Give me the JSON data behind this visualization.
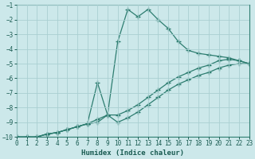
{
  "bg_color": "#cce8ea",
  "grid_color": "#aacfd2",
  "line_color": "#2d7d70",
  "xlim": [
    0,
    23
  ],
  "ylim": [
    -10,
    -1
  ],
  "xticks": [
    0,
    1,
    2,
    3,
    4,
    5,
    6,
    7,
    8,
    9,
    10,
    11,
    12,
    13,
    14,
    15,
    16,
    17,
    18,
    19,
    20,
    21,
    22,
    23
  ],
  "yticks": [
    -10,
    -9,
    -8,
    -7,
    -6,
    -5,
    -4,
    -3,
    -2,
    -1
  ],
  "xlabel": "Humidex (Indice chaleur)",
  "lines": [
    {
      "x": [
        0,
        1,
        2,
        3,
        4,
        5,
        6,
        7,
        8,
        9,
        10,
        11,
        12,
        13,
        14,
        15,
        16,
        17,
        18,
        19,
        20,
        21,
        22,
        23
      ],
      "y": [
        -10,
        -10,
        -10,
        -9.8,
        -9.7,
        -9.5,
        -9.3,
        -9.1,
        -8.8,
        -8.5,
        -3.5,
        -1.3,
        -1.8,
        -1.3,
        -2.0,
        -2.6,
        -3.5,
        -4.1,
        -4.3,
        -4.4,
        -4.5,
        -4.6,
        -4.8,
        -5.0
      ]
    },
    {
      "x": [
        0,
        1,
        2,
        3,
        4,
        5,
        6,
        7,
        8,
        9,
        10,
        11,
        12,
        13,
        14,
        15,
        16,
        17,
        18,
        19,
        20,
        21,
        22,
        23
      ],
      "y": [
        -10,
        -10,
        -10,
        -9.8,
        -9.7,
        -9.5,
        -9.3,
        -9.1,
        -6.3,
        -8.5,
        -8.5,
        -8.2,
        -7.8,
        -7.3,
        -6.8,
        -6.3,
        -5.9,
        -5.6,
        -5.3,
        -5.1,
        -4.8,
        -4.7,
        -4.8,
        -5.0
      ]
    },
    {
      "x": [
        0,
        1,
        2,
        3,
        4,
        5,
        6,
        7,
        8,
        9,
        10,
        11,
        12,
        13,
        14,
        15,
        16,
        17,
        18,
        19,
        20,
        21,
        22,
        23
      ],
      "y": [
        -10,
        -10,
        -10,
        -9.8,
        -9.7,
        -9.5,
        -9.3,
        -9.1,
        -9.0,
        -8.5,
        -9.0,
        -8.7,
        -8.3,
        -7.8,
        -7.3,
        -6.8,
        -6.4,
        -6.1,
        -5.8,
        -5.6,
        -5.3,
        -5.1,
        -5.0,
        -5.0
      ]
    }
  ]
}
